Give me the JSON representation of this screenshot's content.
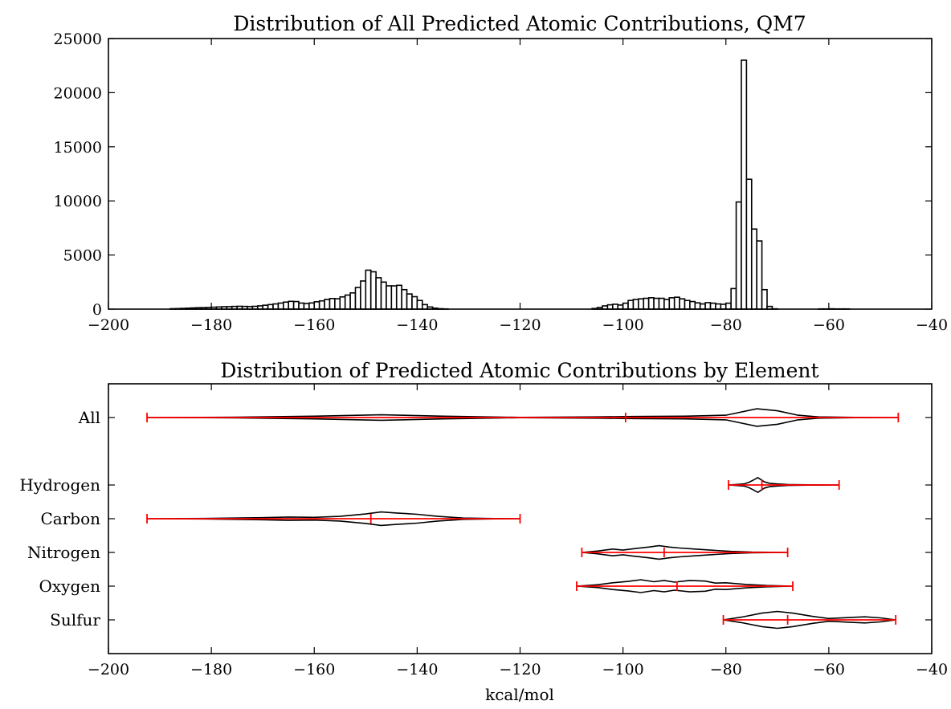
{
  "chart_data": [
    {
      "type": "bar",
      "subtype": "histogram",
      "title": "Distribution of All Predicted Atomic Contributions, QM7",
      "xlabel": "",
      "ylabel": "",
      "xlim": [
        -200,
        -40
      ],
      "ylim": [
        0,
        25000
      ],
      "xticks": [
        "−200",
        "−180",
        "−160",
        "−140",
        "−120",
        "−100",
        "−80",
        "−60",
        "−40"
      ],
      "yticks": [
        "0",
        "5000",
        "10000",
        "15000",
        "20000",
        "25000"
      ],
      "bin_width": 1,
      "bins": [
        [
          -188,
          40
        ],
        [
          -187,
          50
        ],
        [
          -186,
          70
        ],
        [
          -185,
          90
        ],
        [
          -184,
          110
        ],
        [
          -183,
          130
        ],
        [
          -182,
          140
        ],
        [
          -181,
          160
        ],
        [
          -180,
          180
        ],
        [
          -179,
          200
        ],
        [
          -178,
          220
        ],
        [
          -177,
          230
        ],
        [
          -176,
          250
        ],
        [
          -175,
          260
        ],
        [
          -174,
          250
        ],
        [
          -173,
          240
        ],
        [
          -172,
          260
        ],
        [
          -171,
          300
        ],
        [
          -170,
          360
        ],
        [
          -169,
          420
        ],
        [
          -168,
          480
        ],
        [
          -167,
          560
        ],
        [
          -166,
          650
        ],
        [
          -165,
          720
        ],
        [
          -164,
          700
        ],
        [
          -163,
          560
        ],
        [
          -162,
          520
        ],
        [
          -161,
          570
        ],
        [
          -160,
          680
        ],
        [
          -159,
          760
        ],
        [
          -158,
          900
        ],
        [
          -157,
          980
        ],
        [
          -156,
          960
        ],
        [
          -155,
          1130
        ],
        [
          -154,
          1300
        ],
        [
          -153,
          1500
        ],
        [
          -152,
          2000
        ],
        [
          -151,
          2600
        ],
        [
          -150,
          3600
        ],
        [
          -149,
          3450
        ],
        [
          -148,
          2900
        ],
        [
          -147,
          2500
        ],
        [
          -146,
          2150
        ],
        [
          -145,
          2150
        ],
        [
          -144,
          2200
        ],
        [
          -143,
          1800
        ],
        [
          -142,
          1400
        ],
        [
          -141,
          1150
        ],
        [
          -140,
          800
        ],
        [
          -139,
          420
        ],
        [
          -138,
          200
        ],
        [
          -137,
          90
        ],
        [
          -136,
          40
        ],
        [
          -135,
          20
        ],
        [
          -106,
          60
        ],
        [
          -105,
          150
        ],
        [
          -104,
          300
        ],
        [
          -103,
          400
        ],
        [
          -102,
          450
        ],
        [
          -101,
          380
        ],
        [
          -100,
          550
        ],
        [
          -99,
          800
        ],
        [
          -98,
          900
        ],
        [
          -97,
          950
        ],
        [
          -96,
          1000
        ],
        [
          -95,
          1050
        ],
        [
          -94,
          1000
        ],
        [
          -93,
          1000
        ],
        [
          -92,
          900
        ],
        [
          -91,
          1050
        ],
        [
          -90,
          1100
        ],
        [
          -89,
          950
        ],
        [
          -88,
          800
        ],
        [
          -87,
          700
        ],
        [
          -86,
          580
        ],
        [
          -85,
          480
        ],
        [
          -84,
          600
        ],
        [
          -83,
          550
        ],
        [
          -82,
          480
        ],
        [
          -81,
          450
        ],
        [
          -80,
          550
        ],
        [
          -79,
          1900
        ],
        [
          -78,
          9900
        ],
        [
          -77,
          23000
        ],
        [
          -76,
          12000
        ],
        [
          -75,
          7400
        ],
        [
          -74,
          6300
        ],
        [
          -73,
          1800
        ],
        [
          -72,
          250
        ],
        [
          -71,
          30
        ],
        [
          -62,
          20
        ],
        [
          -61,
          20
        ],
        [
          -60,
          30
        ],
        [
          -59,
          20
        ],
        [
          -58,
          20
        ],
        [
          -57,
          20
        ]
      ]
    },
    {
      "type": "violin",
      "title": "Distribution of Predicted Atomic Contributions by Element",
      "xlabel": "kcal/mol",
      "xlim": [
        -200,
        -40
      ],
      "xticks": [
        "−200",
        "−180",
        "−160",
        "−140",
        "−120",
        "−100",
        "−80",
        "−60",
        "−40"
      ],
      "categories": [
        "All",
        "Hydrogen",
        "Carbon",
        "Nitrogen",
        "Oxygen",
        "Sulfur"
      ],
      "positions": [
        6,
        4,
        3,
        2,
        1,
        0
      ],
      "ylim": [
        -1,
        7
      ],
      "line_color": "#ff0000",
      "series": [
        {
          "category": "All",
          "min": -192.5,
          "median": -99.5,
          "max": -46.5,
          "density": [
            [
              -192.5,
              0.0
            ],
            [
              -175,
              0.01
            ],
            [
              -160,
              0.04
            ],
            [
              -147,
              0.08
            ],
            [
              -135,
              0.04
            ],
            [
              -120,
              0.005
            ],
            [
              -105,
              0.02
            ],
            [
              -98,
              0.03
            ],
            [
              -88,
              0.04
            ],
            [
              -80,
              0.07
            ],
            [
              -74,
              0.26
            ],
            [
              -70,
              0.2
            ],
            [
              -66,
              0.07
            ],
            [
              -62,
              0.02
            ],
            [
              -55,
              0.005
            ],
            [
              -46.5,
              0.0
            ]
          ]
        },
        {
          "category": "Hydrogen",
          "min": -79.5,
          "median": -73,
          "max": -58,
          "density": [
            [
              -79.5,
              0.0
            ],
            [
              -76.5,
              0.03
            ],
            [
              -75.5,
              0.08
            ],
            [
              -74.5,
              0.16
            ],
            [
              -73.8,
              0.22
            ],
            [
              -73.2,
              0.16
            ],
            [
              -72.5,
              0.09
            ],
            [
              -71.5,
              0.05
            ],
            [
              -70,
              0.03
            ],
            [
              -68,
              0.015
            ],
            [
              -64,
              0.005
            ],
            [
              -58,
              0.0
            ]
          ]
        },
        {
          "category": "Carbon",
          "min": -192.5,
          "median": -149,
          "max": -120,
          "density": [
            [
              -192.5,
              0.0
            ],
            [
              -180,
              0.01
            ],
            [
              -170,
              0.03
            ],
            [
              -165,
              0.05
            ],
            [
              -160,
              0.04
            ],
            [
              -155,
              0.07
            ],
            [
              -150,
              0.14
            ],
            [
              -147,
              0.2
            ],
            [
              -144,
              0.17
            ],
            [
              -140,
              0.13
            ],
            [
              -136,
              0.07
            ],
            [
              -131,
              0.02
            ],
            [
              -125,
              0.005
            ],
            [
              -120,
              0.0
            ]
          ]
        },
        {
          "category": "Nitrogen",
          "min": -108,
          "median": -92,
          "max": -68,
          "density": [
            [
              -108,
              0.0
            ],
            [
              -105,
              0.04
            ],
            [
              -102,
              0.1
            ],
            [
              -100,
              0.07
            ],
            [
              -98,
              0.11
            ],
            [
              -95,
              0.16
            ],
            [
              -93,
              0.2
            ],
            [
              -91,
              0.16
            ],
            [
              -89,
              0.13
            ],
            [
              -86,
              0.1
            ],
            [
              -82,
              0.06
            ],
            [
              -79,
              0.03
            ],
            [
              -75,
              0.01
            ],
            [
              -68,
              0.0
            ]
          ]
        },
        {
          "category": "Oxygen",
          "min": -109,
          "median": -89.5,
          "max": -67,
          "density": [
            [
              -109,
              0.0
            ],
            [
              -105,
              0.04
            ],
            [
              -102,
              0.1
            ],
            [
              -99,
              0.14
            ],
            [
              -96.5,
              0.19
            ],
            [
              -94,
              0.13
            ],
            [
              -92,
              0.17
            ],
            [
              -90,
              0.12
            ],
            [
              -87,
              0.17
            ],
            [
              -84,
              0.15
            ],
            [
              -82,
              0.09
            ],
            [
              -80,
              0.1
            ],
            [
              -76,
              0.05
            ],
            [
              -72,
              0.02
            ],
            [
              -67,
              0.0
            ]
          ]
        },
        {
          "category": "Sulfur",
          "min": -80.5,
          "median": -68,
          "max": -47,
          "density": [
            [
              -80.5,
              0.0
            ],
            [
              -77,
              0.08
            ],
            [
              -73,
              0.2
            ],
            [
              -70,
              0.25
            ],
            [
              -67,
              0.2
            ],
            [
              -63,
              0.1
            ],
            [
              -60,
              0.04
            ],
            [
              -56,
              0.07
            ],
            [
              -53,
              0.09
            ],
            [
              -50,
              0.06
            ],
            [
              -47,
              0.0
            ]
          ]
        }
      ]
    }
  ]
}
